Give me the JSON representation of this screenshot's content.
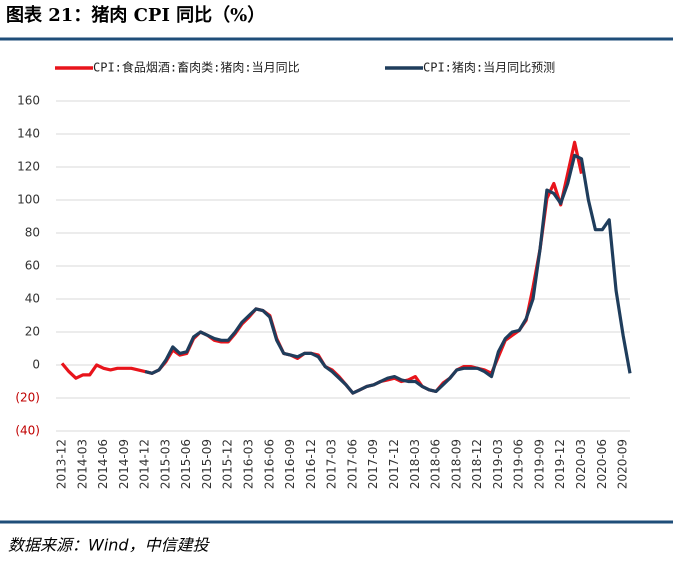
{
  "chart_data": {
    "type": "line",
    "title": "图表 21：猪肉 CPI 同比（%）",
    "source": "数据来源：Wind，中信建投",
    "categories": [
      "2013-12",
      null,
      null,
      "2014-03",
      null,
      null,
      "2014-06",
      null,
      null,
      "2014-09",
      null,
      null,
      "2014-12",
      null,
      null,
      "2015-03",
      null,
      null,
      "2015-06",
      null,
      null,
      "2015-09",
      null,
      null,
      "2015-12",
      null,
      null,
      "2016-03",
      null,
      null,
      "2016-06",
      null,
      null,
      "2016-09",
      null,
      null,
      "2016-12",
      null,
      null,
      "2017-03",
      null,
      null,
      "2017-06",
      null,
      null,
      "2017-09",
      null,
      null,
      "2017-12",
      null,
      null,
      "2018-03",
      null,
      null,
      "2018-06",
      null,
      null,
      "2018-09",
      null,
      null,
      "2018-12",
      null,
      null,
      "2019-03",
      null,
      null,
      "2019-06",
      null,
      null,
      "2019-09",
      null,
      null,
      "2019-12",
      null,
      null,
      "2020-03",
      null,
      null,
      "2020-06",
      null,
      null,
      "2020-09",
      null
    ],
    "series": [
      {
        "name": "CPI:食品烟酒:畜肉类:猪肉:当月同比",
        "color": "#e8141b",
        "values": [
          1,
          -4,
          -8,
          -6,
          -6,
          0,
          -2,
          -3,
          -2,
          -2,
          -2,
          -3,
          -4,
          -5,
          -3,
          2,
          9,
          6,
          7,
          16,
          20,
          18,
          15,
          14,
          14,
          19,
          25,
          29,
          34,
          33,
          30,
          16,
          7,
          6,
          4,
          7,
          7,
          6,
          -1,
          -3,
          -7,
          -12,
          -17,
          -15,
          -13,
          -12,
          -10,
          -9,
          -8,
          -10,
          -9,
          -7,
          -13,
          -15,
          -16,
          -11,
          -8,
          -3,
          -1,
          -1,
          -2,
          -3,
          -5,
          5,
          15,
          18,
          21,
          27,
          47,
          70,
          101,
          110,
          97,
          116,
          135,
          116,
          null,
          null,
          null,
          null,
          null,
          null,
          null
        ]
      },
      {
        "name": "CPI:猪肉:当月同比预测",
        "color": "#1f3d5c",
        "values": [
          null,
          null,
          null,
          null,
          null,
          null,
          null,
          null,
          null,
          null,
          null,
          null,
          -4,
          -5,
          -3,
          3,
          11,
          7,
          8,
          17,
          20,
          18,
          16,
          15,
          15,
          20,
          26,
          30,
          34,
          33,
          29,
          15,
          7,
          6,
          5,
          7,
          7,
          5,
          -1,
          -4,
          -8,
          -12,
          -17,
          -15,
          -13,
          -12,
          -10,
          -8,
          -7,
          -9,
          -10,
          -10,
          -13,
          -15,
          -16,
          -12,
          -8,
          -3,
          -2,
          -2,
          -2,
          -4,
          -7,
          8,
          16,
          20,
          21,
          28,
          40,
          70,
          106,
          104,
          98,
          110,
          127,
          125,
          100,
          82,
          82,
          88,
          45,
          18,
          -5
        ]
      }
    ],
    "ylim": [
      -40,
      160
    ],
    "yticks": [
      {
        "value": -40,
        "label": "(40)"
      },
      {
        "value": -20,
        "label": "(20)"
      },
      0,
      20,
      40,
      60,
      80,
      100,
      120,
      140,
      160
    ],
    "grid": true
  }
}
